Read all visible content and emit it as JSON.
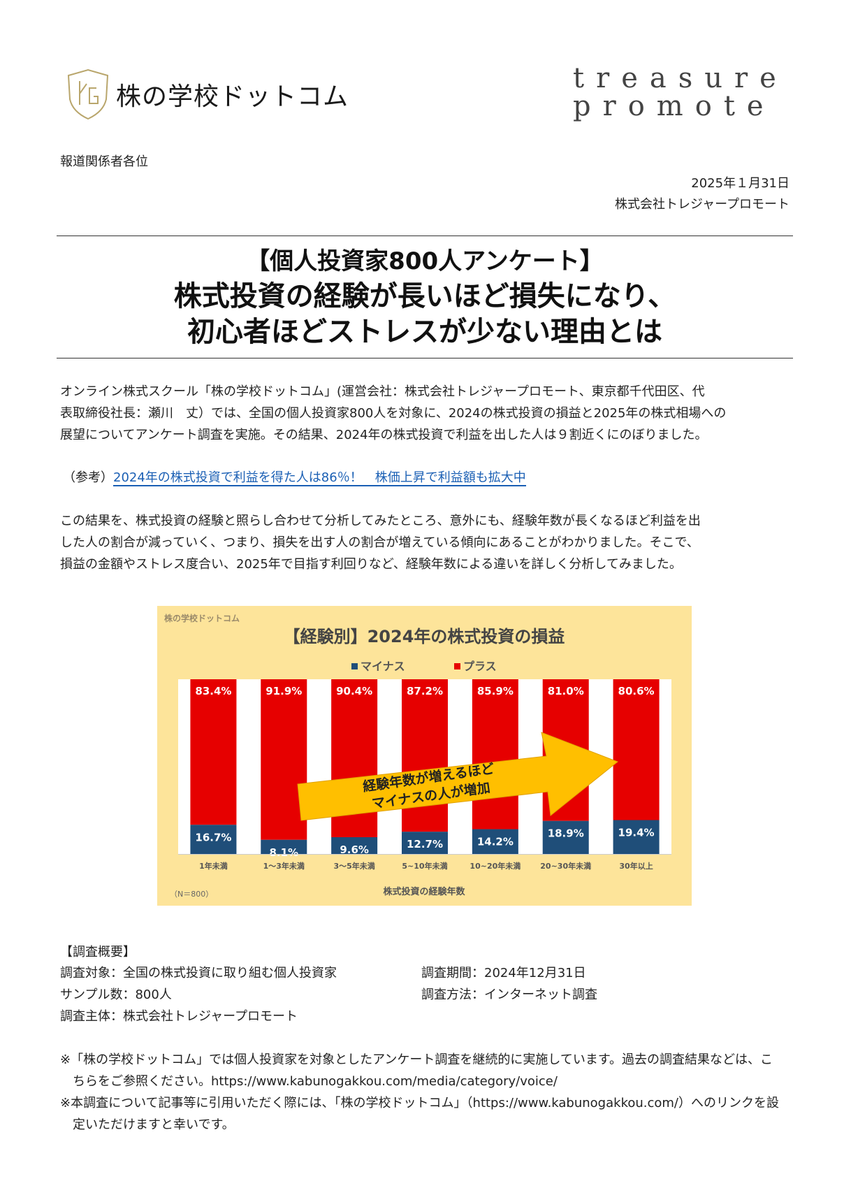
{
  "header": {
    "logo_text": "株の学校ドットコム",
    "logo_mark": "KG .COM",
    "brand_line1": "treasure",
    "brand_line2": "promote"
  },
  "addressee": "報道関係者各位",
  "date": "2025年１月31日",
  "company": "株式会社トレジャープロモート",
  "title": {
    "line1": "【個人投資家800人アンケート】",
    "line2": "株式投資の経験が長いほど損失になり、",
    "line3": "初心者ほどストレスが少ない理由とは"
  },
  "intro": [
    "オンライン株式スクール「株の学校ドットコム」(運営会社：株式会社トレジャープロモート、東京都千代田区、代",
    "表取締役社長：瀬川　丈）では、全国の個人投資家800人を対象に、2024の株式投資の損益と2025年の株式相場への",
    "展望についてアンケート調査を実施。その結果、2024年の株式投資で利益を出した人は９割近くにのぼりました。"
  ],
  "reference": {
    "label": "（参考）",
    "link": "2024年の株式投資で利益を得た人は86％！　株価上昇で利益額も拡大中"
  },
  "analysis": [
    "この結果を、株式投資の経験と照らし合わせて分析してみたところ、意外にも、経験年数が長くなるほど利益を出",
    "した人の割合が減っていく、つまり、損失を出す人の割合が増えている傾向にあることがわかりました。そこで、",
    "損益の金額やストレス度合い、2025年で目指す利回りなど、経験年数による違いを詳しく分析してみました。"
  ],
  "chart_data": {
    "type": "bar",
    "stacked": true,
    "title": "【経験別】2024年の株式投資の損益",
    "watermark": "株の学校ドットコム",
    "categories": [
      "1年未満",
      "1～3年未満",
      "3～5年未満",
      "5~10年未満",
      "10~20年未満",
      "20~30年未満",
      "30年以上"
    ],
    "series": [
      {
        "name": "マイナス",
        "color": "#1f4e79",
        "values": [
          16.7,
          8.1,
          9.6,
          12.7,
          14.2,
          18.9,
          19.4
        ]
      },
      {
        "name": "プラス",
        "color": "#e60000",
        "values": [
          83.4,
          91.9,
          90.4,
          87.2,
          85.9,
          81.0,
          80.6
        ]
      }
    ],
    "value_labels": {
      "マイナス": [
        "16.7%",
        "8.1%",
        "9.6%",
        "12.7%",
        "14.2%",
        "18.9%",
        "19.4%"
      ],
      "プラス": [
        "83.4%",
        "91.9%",
        "90.4%",
        "87.2%",
        "85.9%",
        "81.0%",
        "80.6%"
      ]
    },
    "xlabel": "株式投資の経験年数",
    "ylim": [
      0,
      100
    ],
    "legend": "top-center",
    "note": "（N＝800）",
    "annotation": [
      "経験年数が増えるほど",
      "マイナスの人が増加"
    ],
    "background": "#fde49a",
    "arrow_color": "#ffbf00"
  },
  "survey": {
    "heading": "【調査概要】",
    "target": "調査対象：全国の株式投資に取り組む個人投資家",
    "period": "調査期間：2024年12月31日",
    "sample": "サンプル数：800人",
    "method": "調査方法：インターネット調査",
    "organizer": "調査主体：株式会社トレジャープロモート"
  },
  "notes": [
    "※「株の学校ドットコム」では個人投資家を対象としたアンケート調査を継続的に実施しています。過去の調査結果などは、こ",
    "　ちらをご参照ください。https://www.kabunogakkou.com/media/category/voice/",
    "※本調査について記事等に引用いただく際には、「株の学校ドットコム」（https://www.kabunogakkou.com/）へのリンクを設",
    "　定いただけますと幸いです。"
  ]
}
